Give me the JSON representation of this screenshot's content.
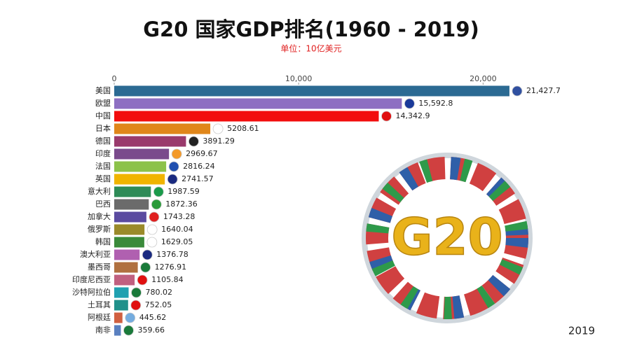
{
  "chart_data": {
    "type": "bar",
    "orientation": "horizontal",
    "title": "G20 国家GDP排名(1960 - 2019)",
    "subtitle": "单位：10亿美元",
    "annotation": "2019",
    "logo_text": "G20",
    "categories": [
      "美国",
      "欧盟",
      "中国",
      "日本",
      "德国",
      "印度",
      "法国",
      "英国",
      "意大利",
      "巴西",
      "加拿大",
      "俄罗斯",
      "韩国",
      "澳大利亚",
      "墨西哥",
      "印度尼西亚",
      "沙特阿拉伯",
      "土耳其",
      "阿根廷",
      "南非"
    ],
    "values": [
      21427.7,
      15592.8,
      14342.9,
      5208.61,
      3891.29,
      2969.67,
      2816.24,
      2741.57,
      1987.59,
      1872.36,
      1743.28,
      1640.04,
      1629.05,
      1376.78,
      1276.91,
      1105.84,
      780.02,
      752.05,
      445.62,
      359.66
    ],
    "value_labels": [
      "21,427.7",
      "15,592.8",
      "14,342.9",
      "5208.61",
      "3891.29",
      "2969.67",
      "2816.24",
      "2741.57",
      "1987.59",
      "1872.36",
      "1743.28",
      "1640.04",
      "1629.05",
      "1376.78",
      "1276.91",
      "1105.84",
      "780.02",
      "752.05",
      "445.62",
      "359.66"
    ],
    "colors": [
      "#2b6a93",
      "#8d6fc2",
      "#f20d0d",
      "#e0861a",
      "#9a3a6c",
      "#7a4a8c",
      "#8cc24a",
      "#f0b400",
      "#2e8b57",
      "#6b6b6b",
      "#5a4aa0",
      "#9a8a2a",
      "#3a8a3a",
      "#b060b0",
      "#b07040",
      "#c06080",
      "#1fa0b0",
      "#20908a",
      "#d06040",
      "#5a80c0"
    ],
    "xlim": [
      0,
      22000
    ],
    "xticks": [
      0,
      {
        "value": 10000,
        "label": "10,000"
      },
      {
        "value": 20000,
        "label": "20,000"
      }
    ],
    "grid": false
  }
}
